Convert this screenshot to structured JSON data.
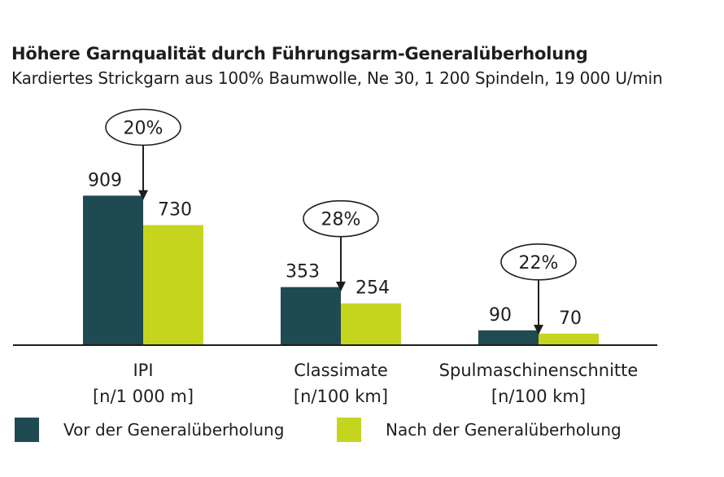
{
  "chart_data": {
    "type": "bar",
    "title": "Höhere Garnqualität durch Führungsarm-Generalüberholung",
    "subtitle": "Kardiertes Strickgarn aus 100% Baumwolle, Ne 30, 1 200 Spindeln, 19 000 U/min",
    "categories": [
      {
        "name": "IPI",
        "unit": "[n/1 000 m]"
      },
      {
        "name": "Classimate",
        "unit": "[n/100 km]"
      },
      {
        "name": "Spulmaschinenschnitte",
        "unit": "[n/100 km]"
      }
    ],
    "series": [
      {
        "name": "Vor der Generalüberholung",
        "color": "#1f4a52",
        "values": [
          909,
          353,
          90
        ],
        "labels": [
          "909",
          "353",
          "90"
        ]
      },
      {
        "name": "Nach der Generalüberholung",
        "color": "#c5d51e",
        "values": [
          730,
          254,
          70
        ],
        "labels": [
          "730",
          "254",
          "70"
        ]
      }
    ],
    "annotations": [
      "20%",
      "28%",
      "22%"
    ],
    "ylim": [
      0,
      1000
    ],
    "xlabel": "",
    "ylabel": "",
    "legend": "bottom"
  }
}
